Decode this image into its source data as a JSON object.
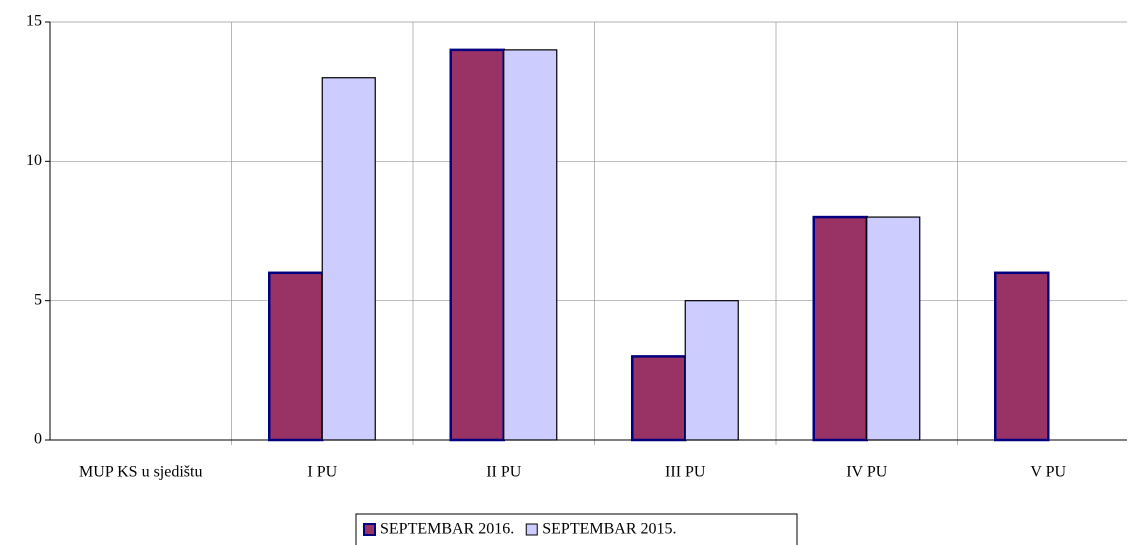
{
  "chart_data": {
    "type": "bar",
    "categories": [
      "MUP KS u sjedištu",
      "I PU",
      "II PU",
      "III PU",
      "IV PU",
      "V PU"
    ],
    "series": [
      {
        "name": "SEPTEMBAR 2016.",
        "color": "#993366",
        "values": [
          0,
          6,
          14,
          3,
          8,
          6
        ]
      },
      {
        "name": "SEPTEMBAR 2015.",
        "color": "#ccccff",
        "values": [
          0,
          13,
          14,
          5,
          8,
          0
        ]
      }
    ],
    "ylim": [
      0,
      15
    ],
    "yticks": [
      0,
      5,
      10,
      15
    ],
    "grid": true,
    "legend": "bottom"
  }
}
